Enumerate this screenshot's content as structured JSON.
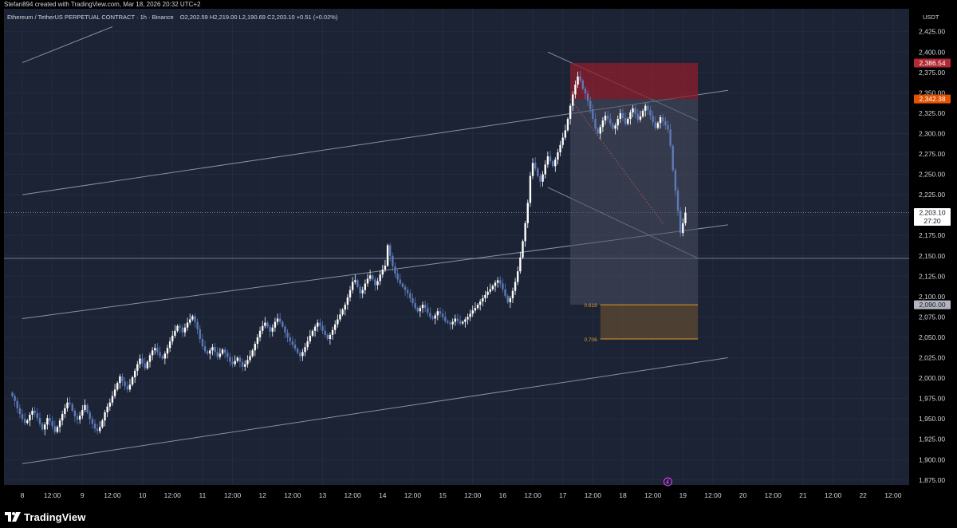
{
  "header": {
    "credit": "Stefan894 created with TradingView.com, Mar 18, 2026 20:32 UTC+2"
  },
  "legend": {
    "symbol": "Ethereum / TetherUS PERPETUAL CONTRACT · 1h · Binance",
    "ohlc": "O2,202.59  H2,219.00  L2,190.69  C2,203.10  +0.51 (+0.02%)"
  },
  "footer": {
    "brand": "TradingView"
  },
  "chart_data": {
    "type": "candlestick",
    "symbol": "ETHUSDT.P",
    "interval": "1h",
    "exchange": "Binance",
    "currency": "USDT",
    "ylim": [
      1865,
      2432
    ],
    "y_ticks": [
      1875,
      1900,
      1925,
      1950,
      1975,
      2000,
      2025,
      2050,
      2075,
      2100,
      2125,
      2150,
      2175,
      2200,
      2225,
      2250,
      2275,
      2300,
      2325,
      2350,
      2375,
      2400,
      2425
    ],
    "x_ticks": [
      "8",
      "12:00",
      "9",
      "12:00",
      "10",
      "12:00",
      "11",
      "12:00",
      "12",
      "12:00",
      "13",
      "12:00",
      "14",
      "12:00",
      "15",
      "12:00",
      "16",
      "12:00",
      "17",
      "12:00",
      "18",
      "12:00",
      "19",
      "12:00",
      "20",
      "12:00",
      "21",
      "12:00",
      "22",
      "12:00"
    ],
    "price_labels": [
      {
        "value": 2386.54,
        "text": "2,386.54",
        "color": "#b22833"
      },
      {
        "value": 2342.38,
        "text": "2,342.38",
        "color": "#e65100"
      },
      {
        "value": 2203.1,
        "text": "2,203.10",
        "color": "#ffffff",
        "countdown": "27:20"
      },
      {
        "value": 2090.0,
        "text": "2,090.00",
        "color": "#b2b5be"
      }
    ],
    "fib_levels": [
      {
        "label": "0.618",
        "value": 2090
      },
      {
        "label": "0.706",
        "value": 2048
      }
    ],
    "short_position": {
      "entry": 2342.38,
      "stop": 2386.54,
      "target": 2090
    },
    "horizontal_levels": [
      2147,
      2203.1
    ],
    "channel_lines": [
      {
        "from": [
          "8 00:00",
          2387
        ],
        "to": [
          "9 12:00",
          2431
        ]
      },
      {
        "from": [
          "8 00:00",
          2225
        ],
        "to": [
          "19 18:00",
          2353
        ]
      },
      {
        "from": [
          "8 00:00",
          2073
        ],
        "to": [
          "19 18:00",
          2188
        ]
      },
      {
        "from": [
          "8 00:00",
          1895
        ],
        "to": [
          "19 18:00",
          2025
        ]
      }
    ],
    "closes": [
      1978,
      1972,
      1963,
      1956,
      1950,
      1945,
      1948,
      1955,
      1960,
      1957,
      1951,
      1944,
      1937,
      1943,
      1951,
      1947,
      1941,
      1934,
      1940,
      1948,
      1956,
      1963,
      1970,
      1968,
      1960,
      1953,
      1949,
      1954,
      1961,
      1967,
      1958,
      1950,
      1944,
      1938,
      1935,
      1940,
      1948,
      1958,
      1965,
      1970,
      1978,
      1986,
      1994,
      2002,
      1996,
      1990,
      1986,
      1992,
      2001,
      2009,
      2017,
      2024,
      2018,
      2012,
      2020,
      2028,
      2034,
      2037,
      2032,
      2027,
      2024,
      2030,
      2037,
      2045,
      2052,
      2058,
      2064,
      2062,
      2056,
      2062,
      2068,
      2072,
      2076,
      2069,
      2060,
      2048,
      2039,
      2033,
      2030,
      2034,
      2038,
      2032,
      2026,
      2030,
      2035,
      2031,
      2026,
      2020,
      2017,
      2021,
      2025,
      2020,
      2014,
      2017,
      2022,
      2027,
      2034,
      2042,
      2050,
      2058,
      2064,
      2068,
      2063,
      2057,
      2062,
      2069,
      2073,
      2069,
      2063,
      2056,
      2050,
      2045,
      2041,
      2036,
      2031,
      2027,
      2032,
      2038,
      2045,
      2052,
      2058,
      2063,
      2068,
      2064,
      2058,
      2053,
      2048,
      2053,
      2059,
      2066,
      2072,
      2078,
      2084,
      2090,
      2099,
      2108,
      2118,
      2120,
      2112,
      2104,
      2108,
      2116,
      2122,
      2126,
      2121,
      2114,
      2119,
      2127,
      2133,
      2138,
      2163,
      2150,
      2137,
      2128,
      2121,
      2116,
      2112,
      2108,
      2104,
      2098,
      2092,
      2086,
      2082,
      2086,
      2090,
      2086,
      2080,
      2075,
      2073,
      2077,
      2082,
      2079,
      2075,
      2070,
      2068,
      2066,
      2069,
      2073,
      2070,
      2067,
      2069,
      2072,
      2075,
      2079,
      2083,
      2086,
      2090,
      2094,
      2098,
      2102,
      2106,
      2109,
      2113,
      2117,
      2120,
      2116,
      2109,
      2101,
      2093,
      2098,
      2107,
      2118,
      2131,
      2148,
      2168,
      2190,
      2215,
      2248,
      2264,
      2257,
      2248,
      2241,
      2250,
      2262,
      2272,
      2266,
      2260,
      2268,
      2277,
      2286,
      2295,
      2304,
      2318,
      2334,
      2348,
      2360,
      2370,
      2365,
      2355,
      2349,
      2340,
      2330,
      2318,
      2306,
      2300,
      2308,
      2316,
      2322,
      2318,
      2312,
      2306,
      2310,
      2318,
      2325,
      2319,
      2312,
      2318,
      2326,
      2331,
      2324,
      2317,
      2321,
      2328,
      2334,
      2329,
      2322,
      2314,
      2307,
      2313,
      2320,
      2315,
      2310,
      2305,
      2285,
      2255,
      2230,
      2205,
      2178,
      2190,
      2203
    ]
  }
}
